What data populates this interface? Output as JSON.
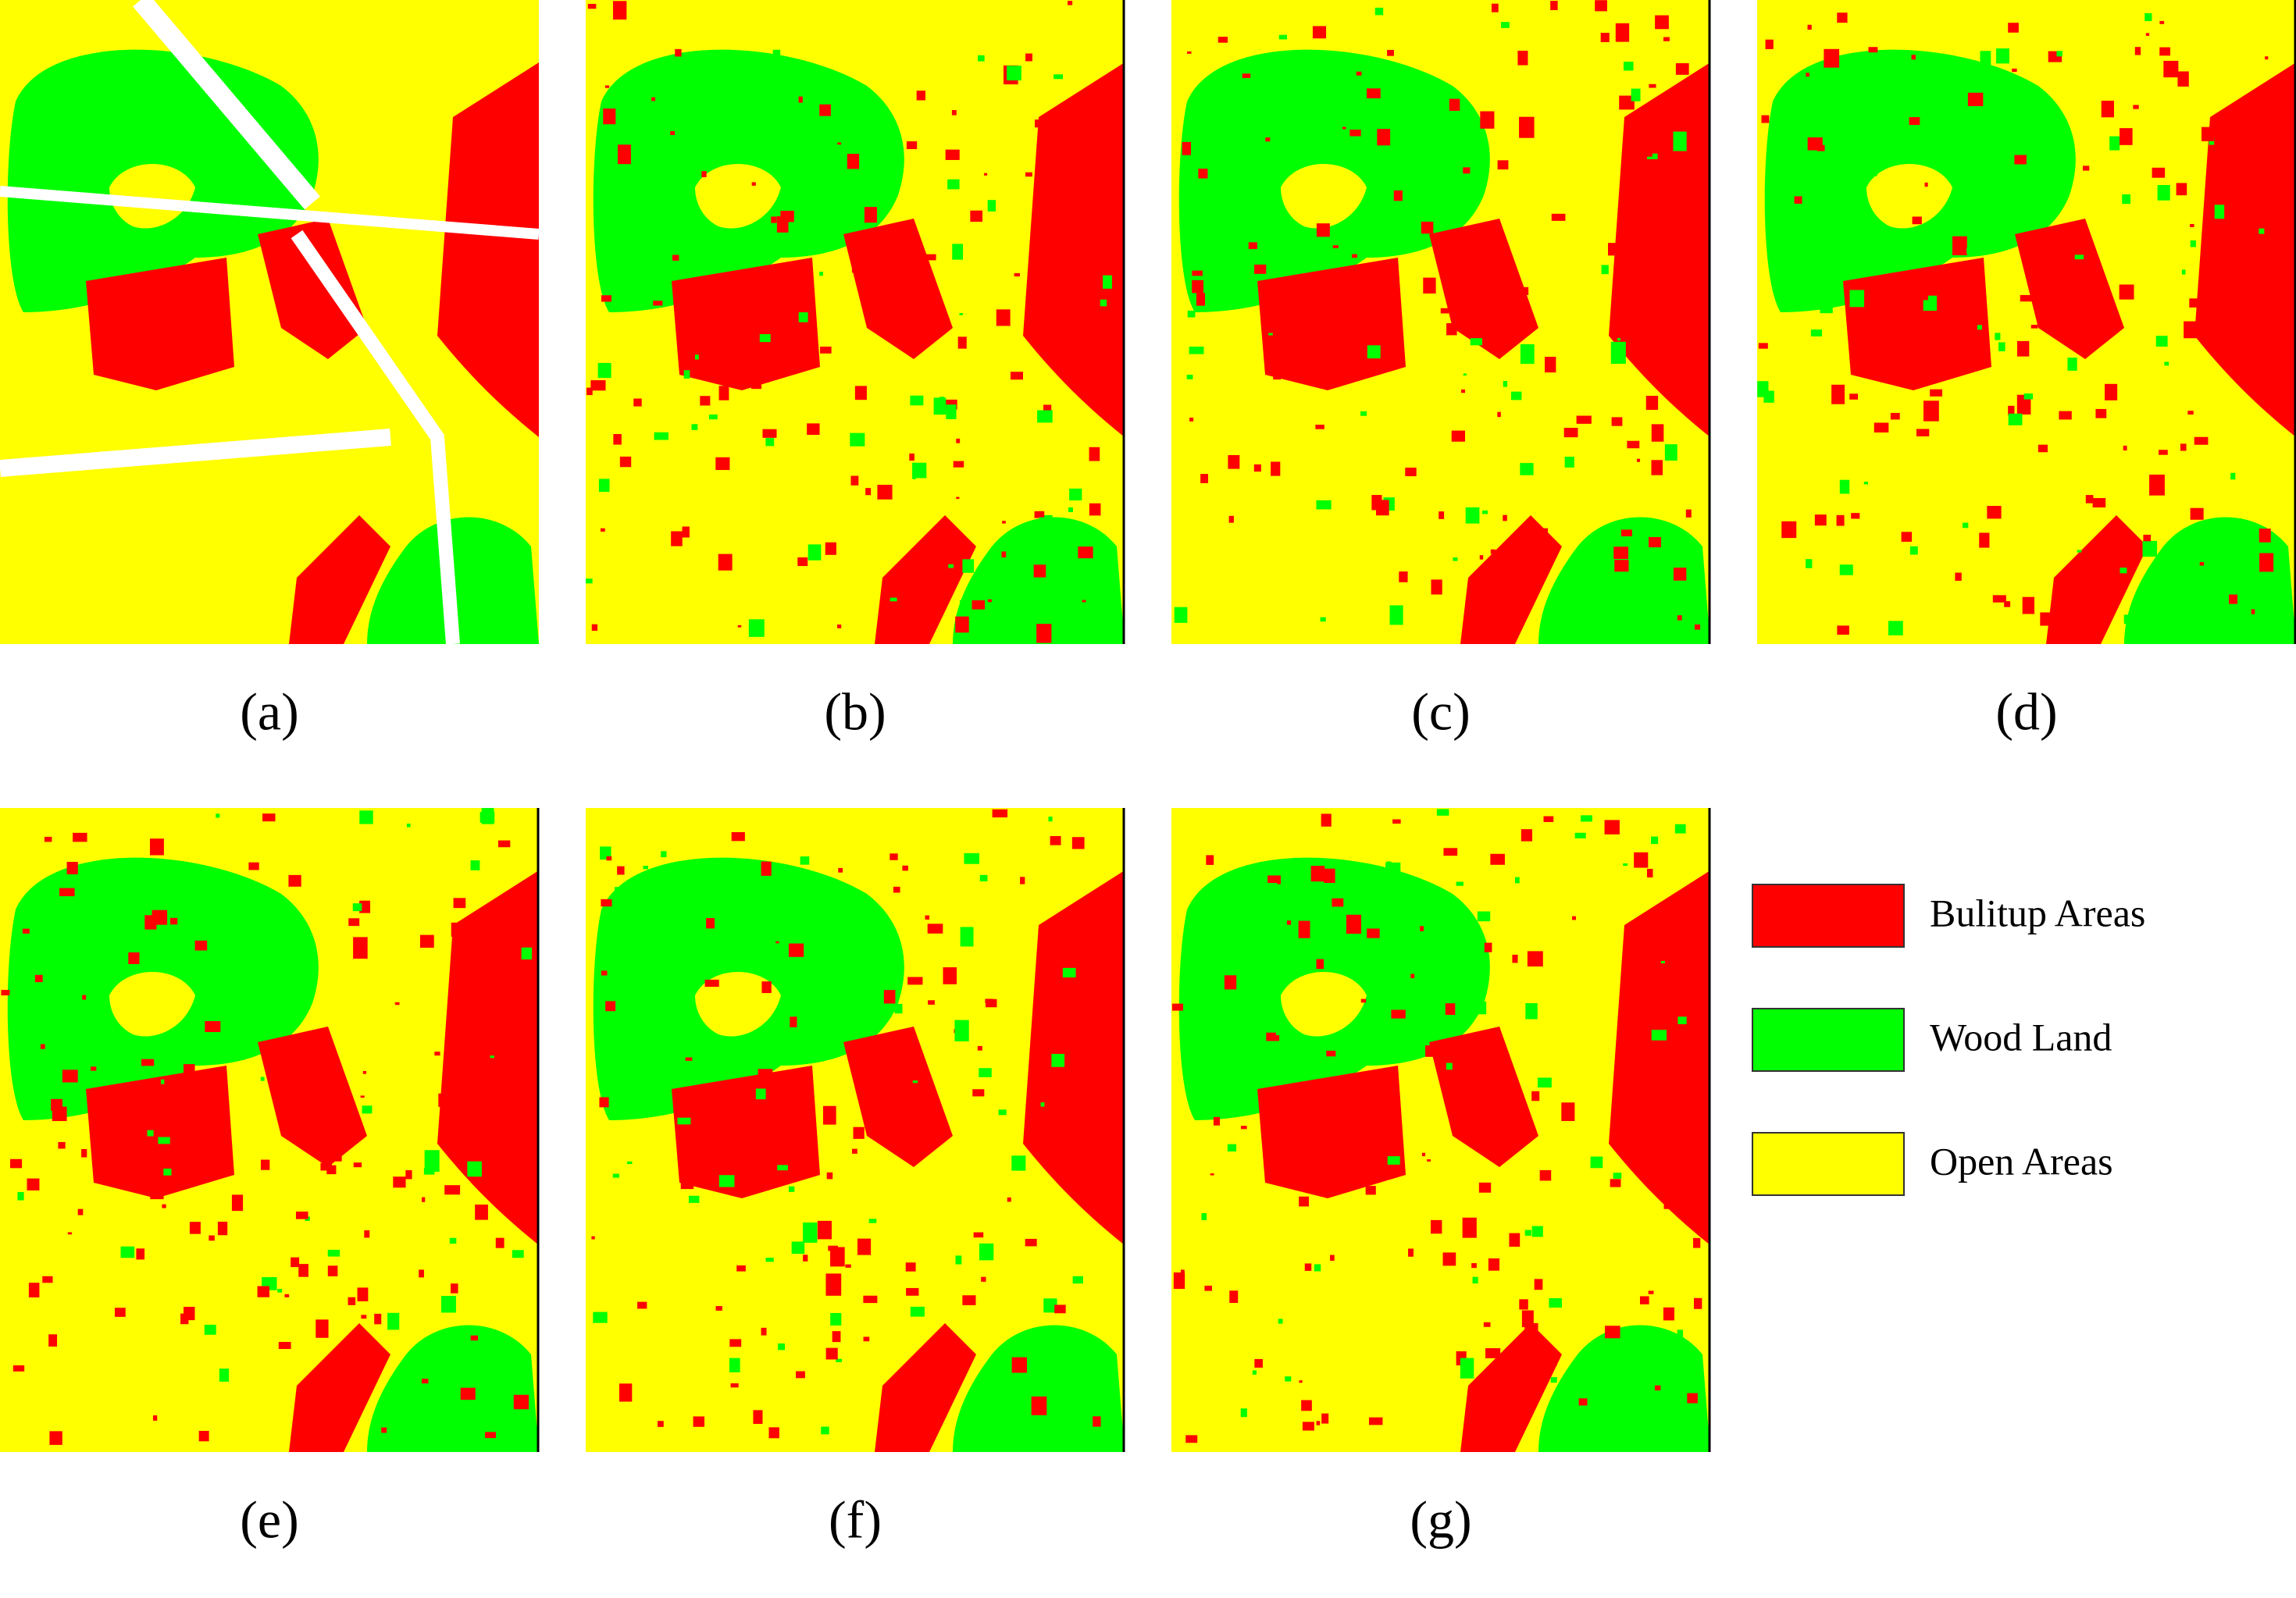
{
  "panels": [
    {
      "label": "(a)"
    },
    {
      "label": "(b)"
    },
    {
      "label": "(c)"
    },
    {
      "label": "(d)"
    },
    {
      "label": "(e)"
    },
    {
      "label": "(f)"
    },
    {
      "label": "(g)"
    }
  ],
  "legend": [
    {
      "name": "Bulitup Areas",
      "color": "#ff0000"
    },
    {
      "name": "Wood Land",
      "color": "#00ff00"
    },
    {
      "name": "Open Areas",
      "color": "#ffff00"
    }
  ]
}
